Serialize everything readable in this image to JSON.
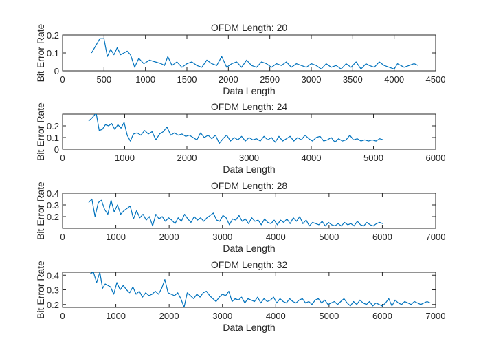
{
  "chart_data": [
    {
      "type": "line",
      "title": "OFDM Length: 20",
      "xlabel": "Data Length",
      "ylabel": "Bit Error Rate",
      "xlim": [
        0,
        4500
      ],
      "ylim": [
        0,
        0.2
      ],
      "xticks": [
        0,
        500,
        1000,
        1500,
        2000,
        2500,
        3000,
        3500,
        4000,
        4500
      ],
      "yticks": [
        0,
        0.1,
        0.2
      ],
      "line_color": "#0072BD",
      "series": [
        {
          "x": [
            350,
            400,
            450,
            500,
            540,
            580,
            620,
            660,
            700,
            740,
            780,
            820,
            870,
            920,
            980,
            1050,
            1120,
            1190,
            1230,
            1270,
            1320,
            1380,
            1440,
            1500,
            1560,
            1620,
            1680,
            1740,
            1800,
            1860,
            1920,
            1980,
            2040,
            2100,
            2160,
            2220,
            2280,
            2340,
            2400,
            2460,
            2520,
            2580,
            2640,
            2700,
            2760,
            2820,
            2880,
            2940,
            3000,
            3060,
            3120,
            3180,
            3240,
            3300,
            3360,
            3420,
            3480,
            3540,
            3600,
            3660,
            3700,
            3760,
            3820,
            3880,
            3940,
            4000,
            4040,
            4080,
            4120,
            4180,
            4240,
            4290
          ],
          "y": [
            0.1,
            0.14,
            0.18,
            0.18,
            0.08,
            0.12,
            0.09,
            0.13,
            0.09,
            0.1,
            0.11,
            0.09,
            0.02,
            0.07,
            0.04,
            0.06,
            0.05,
            0.04,
            0.03,
            0.08,
            0.03,
            0.05,
            0.02,
            0.04,
            0.05,
            0.03,
            0.02,
            0.06,
            0.04,
            0.03,
            0.08,
            0.02,
            0.04,
            0.05,
            0.02,
            0.06,
            0.03,
            0.02,
            0.05,
            0.04,
            0.02,
            0.04,
            0.03,
            0.05,
            0.02,
            0.04,
            0.03,
            0.02,
            0.04,
            0.03,
            0.01,
            0.04,
            0.02,
            0.03,
            0.01,
            0.04,
            0.02,
            0.05,
            0.01,
            0.04,
            0.03,
            0.02,
            0.05,
            0.03,
            0.02,
            0.01,
            0.04,
            0.03,
            0.02,
            0.03,
            0.04,
            0.03
          ]
        }
      ]
    },
    {
      "type": "line",
      "title": "OFDM Length: 24",
      "xlabel": "Data Length",
      "ylabel": "Bit Error Rate",
      "xlim": [
        0,
        6000
      ],
      "ylim": [
        0,
        0.3
      ],
      "xticks": [
        0,
        1000,
        2000,
        3000,
        4000,
        5000,
        6000
      ],
      "yticks": [
        0,
        0.1,
        0.2
      ],
      "line_color": "#0072BD",
      "series": [
        {
          "x": [
            420,
            480,
            540,
            590,
            640,
            690,
            740,
            790,
            840,
            890,
            940,
            990,
            1040,
            1090,
            1140,
            1200,
            1260,
            1320,
            1380,
            1440,
            1500,
            1560,
            1620,
            1680,
            1740,
            1800,
            1860,
            1920,
            1980,
            2040,
            2100,
            2160,
            2220,
            2280,
            2340,
            2400,
            2460,
            2520,
            2580,
            2640,
            2700,
            2760,
            2820,
            2880,
            2940,
            3000,
            3060,
            3120,
            3180,
            3240,
            3300,
            3360,
            3420,
            3480,
            3540,
            3600,
            3660,
            3720,
            3780,
            3840,
            3900,
            3960,
            4020,
            4080,
            4140,
            4200,
            4260,
            4320,
            4380,
            4440,
            4500,
            4560,
            4620,
            4680,
            4740,
            4800,
            4860,
            4920,
            4980,
            5040,
            5100,
            5160
          ],
          "y": [
            0.24,
            0.27,
            0.31,
            0.16,
            0.17,
            0.21,
            0.2,
            0.22,
            0.17,
            0.21,
            0.18,
            0.23,
            0.12,
            0.07,
            0.13,
            0.14,
            0.12,
            0.16,
            0.13,
            0.15,
            0.08,
            0.13,
            0.15,
            0.19,
            0.12,
            0.14,
            0.12,
            0.13,
            0.11,
            0.12,
            0.1,
            0.08,
            0.14,
            0.1,
            0.12,
            0.09,
            0.12,
            0.05,
            0.09,
            0.12,
            0.07,
            0.1,
            0.08,
            0.11,
            0.07,
            0.1,
            0.08,
            0.09,
            0.07,
            0.11,
            0.08,
            0.1,
            0.06,
            0.11,
            0.07,
            0.09,
            0.11,
            0.07,
            0.1,
            0.08,
            0.12,
            0.09,
            0.07,
            0.1,
            0.11,
            0.07,
            0.08,
            0.1,
            0.06,
            0.09,
            0.07,
            0.08,
            0.12,
            0.08,
            0.09,
            0.07,
            0.08,
            0.07,
            0.08,
            0.07,
            0.09,
            0.08
          ]
        }
      ]
    },
    {
      "type": "line",
      "title": "OFDM Length: 28",
      "xlabel": "Data Length",
      "ylabel": "Bit Error Rate",
      "xlim": [
        0,
        7000
      ],
      "ylim": [
        0.1,
        0.4
      ],
      "xticks": [
        0,
        1000,
        2000,
        3000,
        4000,
        5000,
        6000,
        7000
      ],
      "yticks": [
        0.2,
        0.3,
        0.4
      ],
      "line_color": "#0072BD",
      "series": [
        {
          "x": [
            490,
            550,
            610,
            670,
            730,
            790,
            850,
            910,
            970,
            1030,
            1090,
            1150,
            1210,
            1270,
            1330,
            1390,
            1450,
            1510,
            1570,
            1630,
            1690,
            1750,
            1810,
            1870,
            1930,
            1990,
            2050,
            2110,
            2170,
            2230,
            2290,
            2350,
            2410,
            2470,
            2530,
            2590,
            2650,
            2710,
            2770,
            2830,
            2890,
            2950,
            3010,
            3070,
            3130,
            3190,
            3250,
            3310,
            3370,
            3430,
            3490,
            3550,
            3610,
            3670,
            3730,
            3790,
            3850,
            3910,
            3970,
            4030,
            4090,
            4150,
            4210,
            4270,
            4330,
            4390,
            4450,
            4510,
            4570,
            4630,
            4690,
            4750,
            4810,
            4870,
            4930,
            4990,
            5050,
            5110,
            5170,
            5230,
            5290,
            5350,
            5410,
            5470,
            5530,
            5590,
            5650,
            5710,
            5770,
            5830,
            5890,
            5950,
            6010
          ],
          "y": [
            0.32,
            0.35,
            0.2,
            0.32,
            0.34,
            0.26,
            0.22,
            0.34,
            0.24,
            0.3,
            0.22,
            0.25,
            0.27,
            0.29,
            0.18,
            0.25,
            0.19,
            0.22,
            0.17,
            0.2,
            0.12,
            0.22,
            0.18,
            0.2,
            0.16,
            0.19,
            0.17,
            0.14,
            0.19,
            0.16,
            0.22,
            0.18,
            0.15,
            0.2,
            0.17,
            0.19,
            0.16,
            0.19,
            0.21,
            0.23,
            0.17,
            0.16,
            0.21,
            0.19,
            0.13,
            0.18,
            0.17,
            0.21,
            0.16,
            0.18,
            0.14,
            0.19,
            0.16,
            0.17,
            0.13,
            0.18,
            0.15,
            0.14,
            0.17,
            0.13,
            0.17,
            0.15,
            0.18,
            0.14,
            0.19,
            0.16,
            0.2,
            0.14,
            0.17,
            0.12,
            0.15,
            0.14,
            0.13,
            0.16,
            0.12,
            0.15,
            0.13,
            0.12,
            0.14,
            0.12,
            0.15,
            0.13,
            0.14,
            0.12,
            0.16,
            0.13,
            0.12,
            0.15,
            0.13,
            0.12,
            0.14,
            0.15,
            0.14
          ]
        }
      ]
    },
    {
      "type": "line",
      "title": "OFDM Length: 32",
      "xlabel": "Data Length",
      "ylabel": "Bit Error Rate",
      "xlim": [
        0,
        7000
      ],
      "ylim": [
        0.18,
        0.42
      ],
      "xticks": [
        0,
        1000,
        2000,
        3000,
        4000,
        5000,
        6000,
        7000
      ],
      "yticks": [
        0.2,
        0.3,
        0.4
      ],
      "line_color": "#0072BD",
      "series": [
        {
          "x": [
            520,
            580,
            640,
            700,
            750,
            800,
            850,
            900,
            960,
            1020,
            1080,
            1140,
            1200,
            1260,
            1320,
            1380,
            1440,
            1500,
            1560,
            1620,
            1680,
            1740,
            1800,
            1860,
            1920,
            1980,
            2040,
            2100,
            2160,
            2220,
            2280,
            2340,
            2400,
            2460,
            2520,
            2580,
            2640,
            2700,
            2760,
            2820,
            2880,
            2940,
            3000,
            3060,
            3120,
            3180,
            3240,
            3300,
            3360,
            3420,
            3480,
            3540,
            3600,
            3660,
            3720,
            3780,
            3840,
            3900,
            3960,
            4020,
            4080,
            4140,
            4200,
            4260,
            4320,
            4380,
            4440,
            4500,
            4560,
            4620,
            4680,
            4740,
            4800,
            4860,
            4920,
            4980,
            5040,
            5100,
            5160,
            5220,
            5280,
            5340,
            5400,
            5460,
            5520,
            5580,
            5640,
            5700,
            5760,
            5820,
            5880,
            5940,
            6000,
            6060,
            6120,
            6180,
            6240,
            6300,
            6360,
            6420,
            6480,
            6540,
            6600,
            6660,
            6720,
            6780,
            6840,
            6900
          ],
          "y": [
            0.41,
            0.42,
            0.35,
            0.42,
            0.31,
            0.34,
            0.33,
            0.32,
            0.27,
            0.35,
            0.3,
            0.33,
            0.3,
            0.28,
            0.32,
            0.27,
            0.29,
            0.25,
            0.28,
            0.26,
            0.27,
            0.29,
            0.27,
            0.31,
            0.37,
            0.28,
            0.27,
            0.26,
            0.28,
            0.24,
            0.18,
            0.28,
            0.26,
            0.24,
            0.27,
            0.25,
            0.28,
            0.29,
            0.26,
            0.24,
            0.22,
            0.25,
            0.27,
            0.26,
            0.29,
            0.22,
            0.24,
            0.23,
            0.25,
            0.21,
            0.24,
            0.23,
            0.22,
            0.25,
            0.21,
            0.24,
            0.22,
            0.23,
            0.25,
            0.21,
            0.24,
            0.22,
            0.21,
            0.24,
            0.22,
            0.21,
            0.23,
            0.24,
            0.21,
            0.22,
            0.2,
            0.23,
            0.24,
            0.21,
            0.23,
            0.2,
            0.21,
            0.22,
            0.2,
            0.22,
            0.24,
            0.21,
            0.19,
            0.22,
            0.2,
            0.23,
            0.21,
            0.2,
            0.22,
            0.19,
            0.21,
            0.2,
            0.19,
            0.21,
            0.24,
            0.19,
            0.23,
            0.21,
            0.2,
            0.22,
            0.21,
            0.2,
            0.22,
            0.21,
            0.2,
            0.21,
            0.22,
            0.21
          ]
        }
      ]
    }
  ]
}
